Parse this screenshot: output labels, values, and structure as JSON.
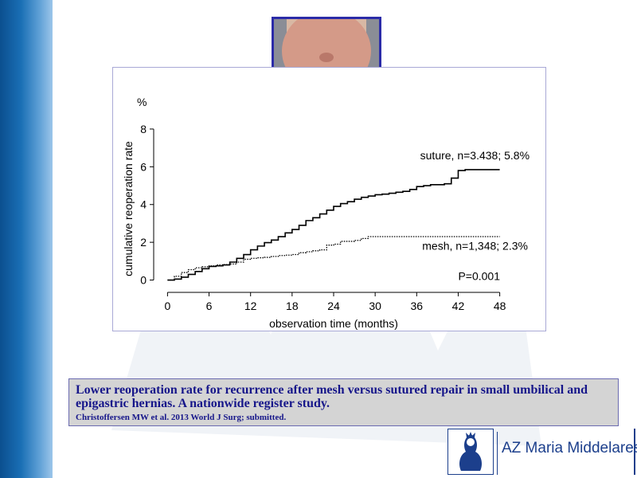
{
  "chart_data": {
    "type": "line",
    "y_unit_label": "%",
    "ylabel": "cumulative reoperation rate",
    "xlabel": "observation time (months)",
    "xlim": [
      -2,
      50
    ],
    "ylim": [
      -0.4,
      8.8
    ],
    "xticks": [
      0,
      6,
      12,
      18,
      24,
      30,
      36,
      42,
      48
    ],
    "yticks": [
      0,
      2,
      4,
      6,
      8
    ],
    "series": [
      {
        "name": "suture, n=3.438; 5.8%",
        "style": "solid",
        "color": "#000000",
        "points": [
          [
            0,
            0
          ],
          [
            1,
            0.05
          ],
          [
            2,
            0.15
          ],
          [
            3,
            0.3
          ],
          [
            4,
            0.45
          ],
          [
            5,
            0.6
          ],
          [
            6,
            0.72
          ],
          [
            7,
            0.75
          ],
          [
            8,
            0.8
          ],
          [
            9,
            0.95
          ],
          [
            10,
            1.15
          ],
          [
            11,
            1.35
          ],
          [
            12,
            1.6
          ],
          [
            13,
            1.8
          ],
          [
            14,
            1.98
          ],
          [
            15,
            2.12
          ],
          [
            16,
            2.3
          ],
          [
            17,
            2.5
          ],
          [
            18,
            2.68
          ],
          [
            19,
            2.9
          ],
          [
            20,
            3.15
          ],
          [
            21,
            3.3
          ],
          [
            22,
            3.5
          ],
          [
            23,
            3.7
          ],
          [
            24,
            3.9
          ],
          [
            25,
            4.05
          ],
          [
            26,
            4.15
          ],
          [
            27,
            4.28
          ],
          [
            28,
            4.38
          ],
          [
            29,
            4.45
          ],
          [
            30,
            4.52
          ],
          [
            31,
            4.55
          ],
          [
            32,
            4.6
          ],
          [
            33,
            4.65
          ],
          [
            34,
            4.7
          ],
          [
            35,
            4.8
          ],
          [
            36,
            4.95
          ],
          [
            37,
            5.0
          ],
          [
            38,
            5.05
          ],
          [
            39,
            5.05
          ],
          [
            40,
            5.1
          ],
          [
            41,
            5.4
          ],
          [
            42,
            5.8
          ],
          [
            43,
            5.85
          ],
          [
            44,
            5.85
          ],
          [
            46,
            5.85
          ],
          [
            48,
            5.85
          ]
        ]
      },
      {
        "name": "mesh, n=1,348; 2.3%",
        "style": "dotted",
        "color": "#000000",
        "points": [
          [
            0,
            0
          ],
          [
            1,
            0.2
          ],
          [
            2,
            0.4
          ],
          [
            3,
            0.55
          ],
          [
            4,
            0.65
          ],
          [
            5,
            0.7
          ],
          [
            6,
            0.75
          ],
          [
            7,
            0.8
          ],
          [
            8,
            0.82
          ],
          [
            9,
            0.85
          ],
          [
            10,
            0.95
          ],
          [
            11,
            1.1
          ],
          [
            12,
            1.15
          ],
          [
            13,
            1.18
          ],
          [
            14,
            1.2
          ],
          [
            15,
            1.25
          ],
          [
            16,
            1.3
          ],
          [
            17,
            1.32
          ],
          [
            18,
            1.35
          ],
          [
            19,
            1.45
          ],
          [
            20,
            1.5
          ],
          [
            21,
            1.55
          ],
          [
            22,
            1.6
          ],
          [
            23,
            1.85
          ],
          [
            24,
            1.9
          ],
          [
            25,
            2.05
          ],
          [
            26,
            2.05
          ],
          [
            27,
            2.1
          ],
          [
            28,
            2.2
          ],
          [
            29,
            2.3
          ],
          [
            30,
            2.3
          ],
          [
            36,
            2.3
          ],
          [
            42,
            2.3
          ],
          [
            48,
            2.3
          ]
        ]
      }
    ],
    "annotations": [
      {
        "text": "P=0.001",
        "x": 42,
        "y": 0.0
      }
    ]
  },
  "caption": {
    "main": "Lower reoperation rate for recurrence after mesh versus sutured repair in small umbilical and epigastric hernias. A nationwide register study.",
    "citation": "Christoffersen MW et al. 2013 World J Surg;  submitted."
  },
  "logo": {
    "text": "AZ Maria Middelares"
  },
  "colors": {
    "accent_blue": "#16168a",
    "sidebar_blue": "#0b4f8f"
  }
}
